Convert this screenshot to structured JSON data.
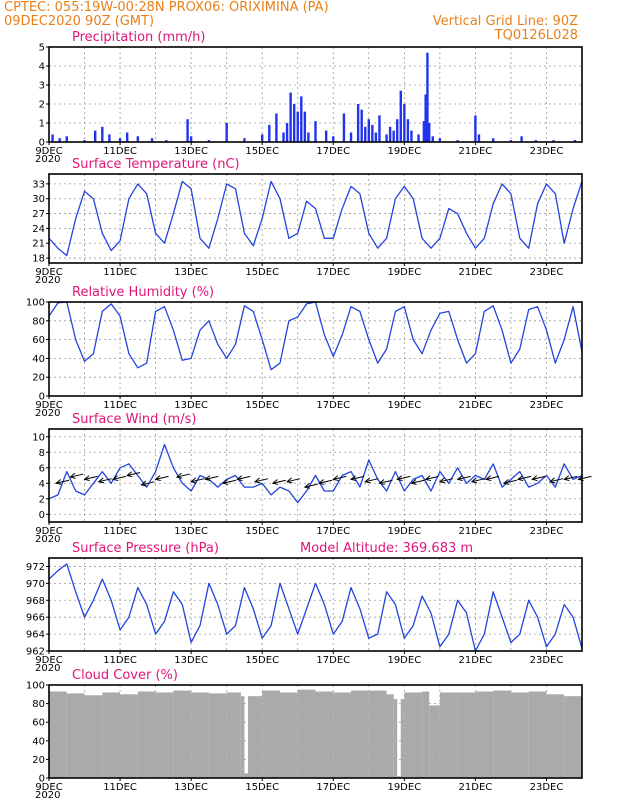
{
  "header": {
    "line1_left": "CPTEC:   055:19W-00:28N   PROX06: ORIXIMINA (PA)",
    "line2_left": "09DEC2020 90Z (GMT)",
    "line2_right": "Vertical Grid Line: 90Z",
    "line3_right": "TQ0126L028"
  },
  "x_axis": {
    "start_day": 9,
    "end_day": 24,
    "tick_labels": [
      "9DEC",
      "11DEC",
      "13DEC",
      "15DEC",
      "17DEC",
      "19DEC",
      "21DEC",
      "23DEC"
    ],
    "tick_days": [
      9,
      11,
      13,
      15,
      17,
      19,
      21,
      23
    ],
    "year_label": "2020"
  },
  "colors": {
    "line": "#2244dd",
    "bar": "#2233ee",
    "cloud": "#aaaaaa",
    "arrow": "#000000",
    "header": "#e8801a",
    "title": "#e0157a"
  },
  "chart_data": [
    {
      "id": "precip",
      "type": "bar",
      "title": "Precipitation (mm/h)",
      "ylim": [
        0,
        5
      ],
      "yticks": [
        0,
        1,
        2,
        3,
        4,
        5
      ],
      "grid": true,
      "x": [
        9.1,
        9.3,
        9.5,
        10.0,
        10.3,
        10.5,
        10.7,
        11.0,
        11.2,
        11.5,
        11.9,
        12.3,
        12.9,
        13.0,
        13.5,
        14.0,
        14.5,
        15.0,
        15.2,
        15.4,
        15.6,
        15.7,
        15.8,
        15.9,
        16.0,
        16.1,
        16.2,
        16.3,
        16.5,
        16.8,
        17.0,
        17.3,
        17.5,
        17.7,
        17.8,
        17.9,
        18.0,
        18.1,
        18.2,
        18.3,
        18.5,
        18.6,
        18.7,
        18.8,
        18.9,
        19.0,
        19.1,
        19.2,
        19.4,
        19.55,
        19.6,
        19.65,
        19.7,
        19.8,
        20.0,
        20.5,
        21.0,
        21.1,
        21.5,
        22.0,
        22.3,
        22.7,
        23.2,
        23.8
      ],
      "values": [
        0.4,
        0.2,
        0.3,
        0.1,
        0.6,
        0.8,
        0.4,
        0.2,
        0.5,
        0.3,
        0.2,
        0.1,
        1.2,
        0.3,
        0.1,
        1.0,
        0.2,
        0.4,
        0.9,
        1.5,
        0.5,
        1.0,
        2.6,
        2.0,
        1.6,
        2.4,
        1.6,
        0.5,
        1.1,
        0.6,
        0.3,
        1.5,
        0.5,
        2.0,
        1.7,
        0.8,
        1.2,
        0.9,
        0.5,
        1.4,
        0.4,
        0.8,
        0.6,
        1.2,
        2.7,
        2.0,
        1.2,
        0.6,
        0.4,
        1.1,
        2.5,
        4.7,
        1.0,
        0.3,
        0.2,
        0.1,
        1.4,
        0.4,
        0.2,
        0.1,
        0.3,
        0.1,
        0.1,
        0.1
      ]
    },
    {
      "id": "temp",
      "type": "line",
      "title": "Surface Temperature (nC)",
      "ylim": [
        17,
        35
      ],
      "yticks": [
        18,
        21,
        24,
        27,
        30,
        33
      ],
      "grid": true,
      "x": [
        9.0,
        9.25,
        9.5,
        9.75,
        10.0,
        10.25,
        10.5,
        10.75,
        11.0,
        11.25,
        11.5,
        11.75,
        12.0,
        12.25,
        12.5,
        12.75,
        13.0,
        13.25,
        13.5,
        13.75,
        14.0,
        14.25,
        14.5,
        14.75,
        15.0,
        15.25,
        15.5,
        15.75,
        16.0,
        16.25,
        16.5,
        16.75,
        17.0,
        17.25,
        17.5,
        17.75,
        18.0,
        18.25,
        18.5,
        18.75,
        19.0,
        19.25,
        19.5,
        19.75,
        20.0,
        20.25,
        20.5,
        20.75,
        21.0,
        21.25,
        21.5,
        21.75,
        22.0,
        22.25,
        22.5,
        22.75,
        23.0,
        23.25,
        23.5,
        23.75,
        24.0
      ],
      "values": [
        22,
        20,
        18.5,
        26,
        31.5,
        30,
        23,
        19.5,
        21.5,
        30,
        33,
        31,
        23,
        21,
        27,
        33.5,
        32,
        22,
        20,
        26,
        33,
        32,
        23,
        20.5,
        26,
        33.5,
        30,
        22,
        23,
        29.5,
        28,
        22,
        22,
        28,
        32.5,
        31,
        23,
        20,
        22,
        30,
        32.5,
        30,
        22,
        20,
        22,
        28,
        27,
        23,
        20,
        22,
        29,
        33,
        31,
        22,
        20,
        29,
        33,
        31,
        21,
        28,
        33.5
      ]
    },
    {
      "id": "rh",
      "type": "line",
      "title": "Relative Humidity (%)",
      "ylim": [
        0,
        100
      ],
      "yticks": [
        0,
        20,
        40,
        60,
        80,
        100
      ],
      "grid": true,
      "x": [
        9.0,
        9.25,
        9.5,
        9.75,
        10.0,
        10.25,
        10.5,
        10.75,
        11.0,
        11.25,
        11.5,
        11.75,
        12.0,
        12.25,
        12.5,
        12.75,
        13.0,
        13.25,
        13.5,
        13.75,
        14.0,
        14.25,
        14.5,
        14.75,
        15.0,
        15.25,
        15.5,
        15.75,
        16.0,
        16.25,
        16.5,
        16.75,
        17.0,
        17.25,
        17.5,
        17.75,
        18.0,
        18.25,
        18.5,
        18.75,
        19.0,
        19.25,
        19.5,
        19.75,
        20.0,
        20.25,
        20.5,
        20.75,
        21.0,
        21.25,
        21.5,
        21.75,
        22.0,
        22.25,
        22.5,
        22.75,
        23.0,
        23.25,
        23.5,
        23.75,
        24.0
      ],
      "values": [
        85,
        99,
        100,
        60,
        37,
        45,
        90,
        98,
        85,
        45,
        30,
        35,
        90,
        95,
        70,
        38,
        40,
        70,
        80,
        55,
        40,
        55,
        96,
        90,
        60,
        28,
        35,
        80,
        84,
        98,
        100,
        65,
        42,
        65,
        95,
        90,
        60,
        35,
        50,
        90,
        95,
        60,
        45,
        70,
        88,
        90,
        60,
        35,
        45,
        90,
        96,
        70,
        35,
        50,
        92,
        95,
        70,
        35,
        60,
        95,
        47
      ]
    },
    {
      "id": "wind",
      "type": "line",
      "title": "Surface Wind (m/s)",
      "ylim": [
        -1,
        11
      ],
      "yticks": [
        0,
        2,
        4,
        6,
        8,
        10
      ],
      "grid": true,
      "x": [
        9.0,
        9.25,
        9.5,
        9.75,
        10.0,
        10.25,
        10.5,
        10.75,
        11.0,
        11.25,
        11.5,
        11.75,
        12.0,
        12.25,
        12.5,
        12.75,
        13.0,
        13.25,
        13.5,
        13.75,
        14.0,
        14.25,
        14.5,
        14.75,
        15.0,
        15.25,
        15.5,
        15.75,
        16.0,
        16.25,
        16.5,
        16.75,
        17.0,
        17.25,
        17.5,
        17.75,
        18.0,
        18.25,
        18.5,
        18.75,
        19.0,
        19.25,
        19.5,
        19.75,
        20.0,
        20.25,
        20.5,
        20.75,
        21.0,
        21.25,
        21.5,
        21.75,
        22.0,
        22.25,
        22.5,
        22.75,
        23.0,
        23.25,
        23.5,
        23.75,
        24.0
      ],
      "values": [
        2.0,
        2.5,
        5.5,
        3.0,
        2.5,
        4.0,
        5.5,
        4.0,
        6.0,
        6.5,
        5.0,
        3.5,
        5.5,
        9.0,
        6.0,
        4.0,
        3.0,
        5.0,
        4.5,
        3.5,
        4.5,
        5.0,
        3.5,
        3.5,
        4.0,
        2.5,
        3.5,
        3.0,
        1.5,
        3.0,
        5.0,
        3.0,
        3.0,
        5.0,
        5.5,
        3.5,
        7.0,
        4.5,
        3.0,
        5.5,
        3.0,
        4.5,
        5.0,
        3.0,
        5.5,
        4.0,
        6.0,
        4.0,
        5.0,
        4.5,
        6.5,
        3.5,
        4.5,
        5.5,
        3.5,
        4.0,
        5.0,
        3.5,
        6.5,
        4.5,
        5.0
      ],
      "arrows_x": [
        9.2,
        9.6,
        10.0,
        10.4,
        10.8,
        11.2,
        11.6,
        12.0,
        12.6,
        13.0,
        13.4,
        13.9,
        14.3,
        14.8,
        15.3,
        15.7,
        16.2,
        16.6,
        17.0,
        17.5,
        17.9,
        18.3,
        18.8,
        19.2,
        19.6,
        20.0,
        20.5,
        20.9,
        21.3,
        21.8,
        22.2,
        22.6,
        23.1,
        23.5,
        23.9
      ],
      "arrows_y": [
        4.0,
        4.8,
        4.5,
        4.2,
        4.5,
        5.0,
        3.8,
        4.5,
        4.8,
        4.2,
        4.5,
        4.0,
        4.5,
        4.2,
        4.0,
        4.2,
        3.5,
        4.0,
        4.5,
        4.5,
        4.2,
        4.0,
        4.5,
        4.0,
        4.5,
        4.2,
        4.5,
        4.2,
        4.5,
        4.0,
        4.5,
        4.5,
        4.2,
        4.5,
        4.5
      ]
    },
    {
      "id": "pres",
      "type": "line",
      "title": "Surface Pressure (hPa)",
      "subtitle": "Model Altitude: 369.683 m",
      "ylim": [
        962,
        973
      ],
      "yticks": [
        962,
        964,
        966,
        968,
        970,
        972
      ],
      "grid": true,
      "x": [
        9.0,
        9.25,
        9.5,
        9.75,
        10.0,
        10.25,
        10.5,
        10.75,
        11.0,
        11.25,
        11.5,
        11.75,
        12.0,
        12.25,
        12.5,
        12.75,
        13.0,
        13.25,
        13.5,
        13.75,
        14.0,
        14.25,
        14.5,
        14.75,
        15.0,
        15.25,
        15.5,
        15.75,
        16.0,
        16.25,
        16.5,
        16.75,
        17.0,
        17.25,
        17.5,
        17.75,
        18.0,
        18.25,
        18.5,
        18.75,
        19.0,
        19.25,
        19.5,
        19.75,
        20.0,
        20.25,
        20.5,
        20.75,
        21.0,
        21.25,
        21.5,
        21.75,
        22.0,
        22.25,
        22.5,
        22.75,
        23.0,
        23.25,
        23.5,
        23.75,
        24.0
      ],
      "values": [
        970.5,
        971.5,
        972.3,
        969.0,
        966.0,
        968.0,
        970.5,
        968.0,
        964.5,
        966.0,
        969.5,
        967.5,
        964.0,
        965.5,
        969.0,
        967.5,
        963.0,
        965.0,
        970.0,
        967.5,
        964.0,
        965.0,
        969.5,
        967.0,
        963.5,
        965.0,
        970.0,
        967.0,
        964.0,
        967.0,
        970.0,
        967.5,
        964.0,
        965.5,
        969.5,
        967.0,
        963.5,
        964.0,
        969.0,
        967.5,
        963.5,
        965.0,
        968.5,
        966.5,
        962.5,
        964.0,
        968.0,
        966.5,
        962.0,
        964.0,
        969.0,
        966.0,
        963.0,
        964.0,
        968.0,
        966.0,
        962.5,
        964.0,
        967.5,
        966.0,
        962.3
      ]
    },
    {
      "id": "cloud",
      "type": "area",
      "title": "Cloud Cover (%)",
      "ylim": [
        0,
        100
      ],
      "yticks": [
        0,
        20,
        40,
        60,
        80,
        100
      ],
      "grid": true,
      "x": [
        9.0,
        9.5,
        10.0,
        10.5,
        11.0,
        11.5,
        12.0,
        12.5,
        13.0,
        13.5,
        14.0,
        14.4,
        14.5,
        14.6,
        15.0,
        15.5,
        16.0,
        16.5,
        17.0,
        17.5,
        18.0,
        18.5,
        18.7,
        18.8,
        18.9,
        19.0,
        19.5,
        19.7,
        20.0,
        20.5,
        21.0,
        21.5,
        22.0,
        22.5,
        23.0,
        23.5,
        24.0
      ],
      "values": [
        93,
        91,
        89,
        92,
        90,
        93,
        92,
        94,
        92,
        91,
        92,
        88,
        5,
        88,
        94,
        92,
        95,
        93,
        92,
        94,
        94,
        90,
        85,
        2,
        85,
        92,
        93,
        78,
        92,
        92,
        93,
        94,
        92,
        93,
        90,
        88,
        88
      ]
    }
  ]
}
